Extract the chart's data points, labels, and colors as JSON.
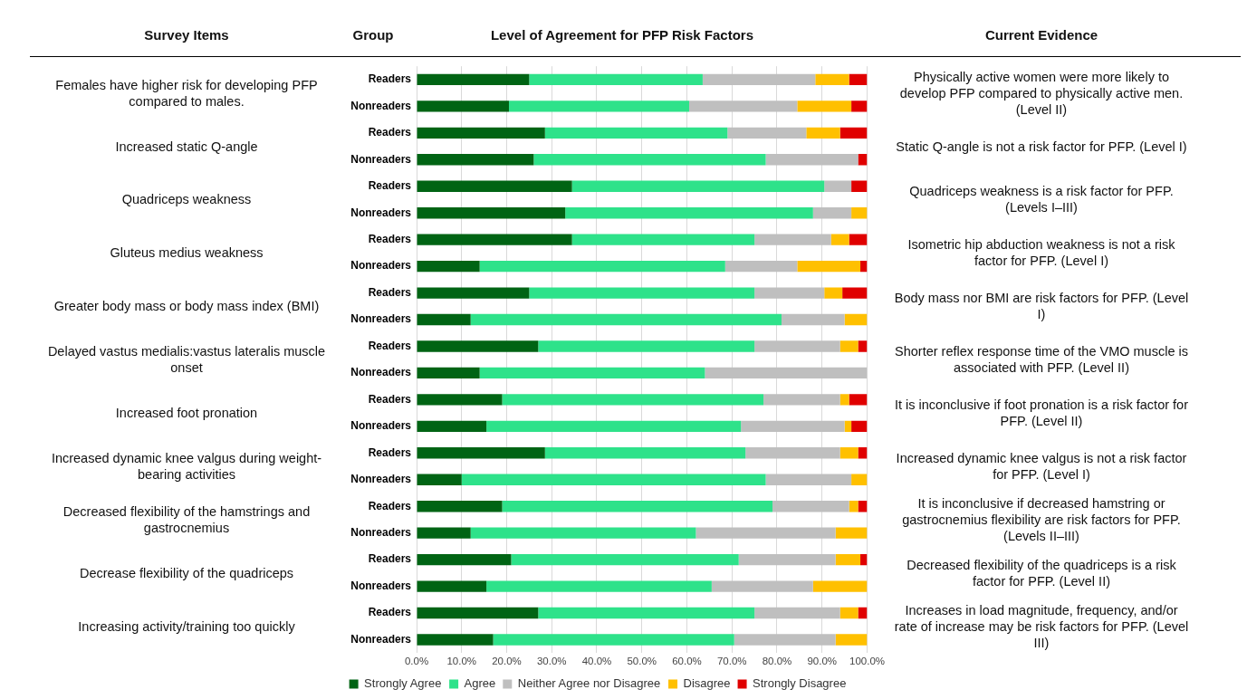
{
  "chart_data": {
    "type": "bar",
    "orientation": "horizontal",
    "stacked": true,
    "title": "Level of Agreement for PFP Risk Factors",
    "ylabel": "Group",
    "categories": [
      "Readers",
      "Nonreaders",
      "Readers",
      "Nonreaders",
      "Readers",
      "Nonreaders",
      "Readers",
      "Nonreaders",
      "Readers",
      "Nonreaders",
      "Readers",
      "Nonreaders",
      "Readers",
      "Nonreaders",
      "Readers",
      "Nonreaders",
      "Readers",
      "Nonreaders",
      "Readers",
      "Nonreaders",
      "Readers",
      "Nonreaders"
    ],
    "series": [
      {
        "name": "Strongly Agree",
        "color": "#006414",
        "values": [
          25,
          20.5,
          28.5,
          26,
          34.5,
          33,
          34.5,
          14,
          25,
          12,
          27,
          14,
          19,
          15.5,
          28.5,
          10,
          19,
          12,
          21,
          15.5,
          27,
          17
        ]
      },
      {
        "name": "Agree",
        "color": "#2ee28a",
        "values": [
          38.5,
          40,
          40.5,
          51.5,
          56,
          55,
          40.5,
          54.5,
          50,
          69,
          48,
          50,
          58,
          56.5,
          44.5,
          67.5,
          60,
          50,
          50.5,
          50,
          48,
          53.5
        ]
      },
      {
        "name": "Neither Agree nor Disagree",
        "color": "#bfbfbf",
        "values": [
          25,
          24,
          17.5,
          20.5,
          6,
          8.5,
          17,
          16,
          15.5,
          14,
          19,
          36,
          17,
          23,
          21,
          19,
          17,
          31,
          21.5,
          22.5,
          19,
          22.5
        ]
      },
      {
        "name": "Disagree",
        "color": "#ffc000",
        "values": [
          7.5,
          12,
          7.5,
          0,
          0,
          3.5,
          4,
          14,
          4,
          5,
          4,
          0,
          2,
          1.5,
          4,
          3.5,
          2,
          7,
          5.5,
          12,
          4,
          7
        ]
      },
      {
        "name": "Strongly Disagree",
        "color": "#e00000",
        "values": [
          4,
          3.5,
          6,
          2,
          3.5,
          0,
          4,
          1.5,
          5.5,
          0,
          2,
          0,
          4,
          3.5,
          2,
          0,
          2,
          0,
          1.5,
          0,
          2,
          0
        ]
      }
    ],
    "xlim": [
      0,
      100
    ],
    "xticks": [
      {
        "value": 0,
        "label": "0.0%"
      },
      {
        "value": 10,
        "label": "10.0%"
      },
      {
        "value": 20,
        "label": "20.0%"
      },
      {
        "value": 30,
        "label": "30.0%"
      },
      {
        "value": 40,
        "label": "40.0%"
      },
      {
        "value": 50,
        "label": "50.0%"
      },
      {
        "value": 60,
        "label": "60.0%"
      },
      {
        "value": 70,
        "label": "70.0%"
      },
      {
        "value": 80,
        "label": "80.0%"
      },
      {
        "value": 90,
        "label": "90.0%"
      },
      {
        "value": 100,
        "label": "100.0%"
      }
    ],
    "grid": "x",
    "legend": "bottom",
    "annotations": [
      "Survey Items",
      "Current Evidence",
      "Females have higher risk for developing PFP compared to males.",
      "Increased static Q-angle",
      "Quadriceps weakness",
      "Gluteus medius weakness",
      "Greater body mass or body mass index (BMI)",
      "Delayed vastus medialis:vastus lateralis muscle onset",
      "Increased foot pronation",
      "Increased dynamic knee valgus during weight-bearing activities",
      "Decreased flexibility of the hamstrings and gastrocnemius",
      "Decrease flexibility of the quadriceps",
      "Increasing activity/training too quickly",
      "Physically active women were more likely to develop PFP compared to physically active men. (Level II)",
      "Static Q-angle is not a risk factor for PFP. (Level I)",
      "Quadriceps weakness is a risk factor for PFP. (Levels I–III)",
      "Isometric hip abduction weakness is not a risk factor for PFP. (Level I)",
      "Body mass nor BMI are risk factors for PFP. (Level I)",
      "Shorter reflex response time of the VMO muscle is associated with PFP. (Level II)",
      "It is inconclusive if foot pronation is a risk factor for PFP. (Level II)",
      "Increased dynamic knee valgus is not a risk factor for PFP. (Level I)",
      "It is inconclusive if decreased hamstring or gastrocnemius flexibility are risk factors for PFP. (Levels II–III)",
      "Decreased flexibility of the quadriceps is a risk factor for PFP. (Level II)",
      "Increases in load magnitude, frequency, and/or rate of increase may be risk factors for PFP. (Level III)"
    ]
  }
}
